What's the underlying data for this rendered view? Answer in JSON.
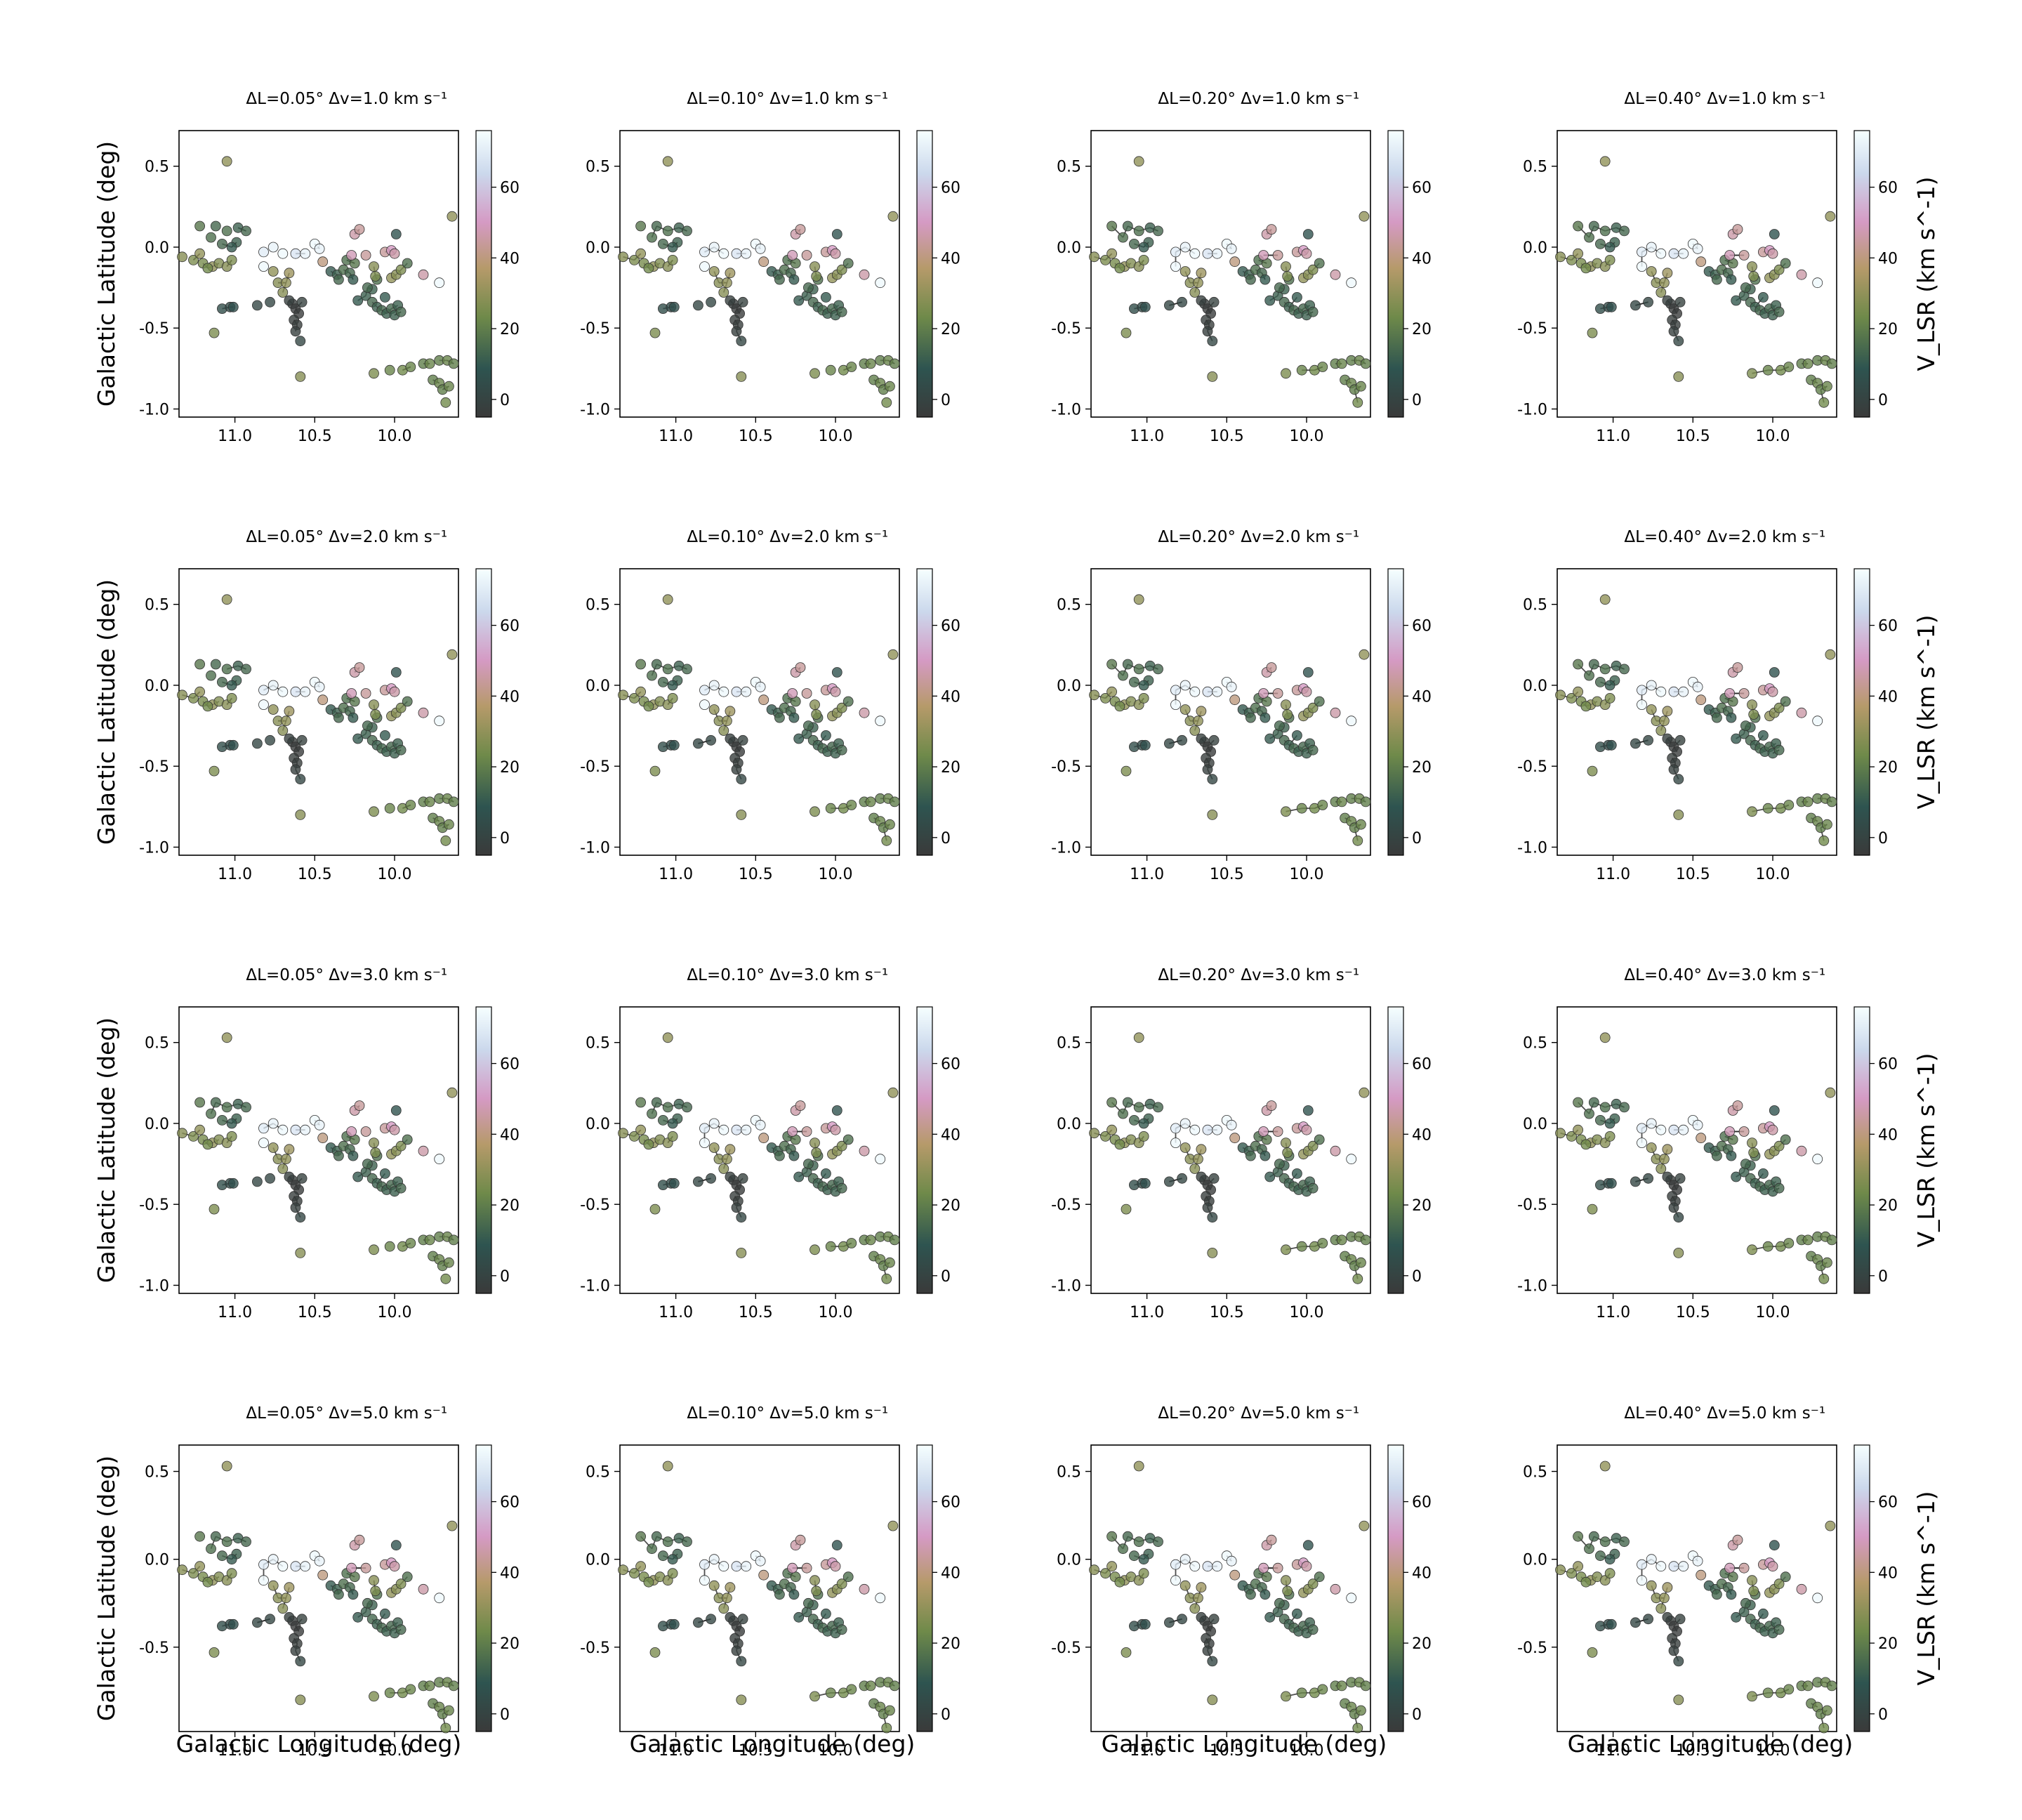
{
  "figure": {
    "xlabel": "Galactic Longitude (deg)",
    "ylabel": "Galactic Latitude (deg)",
    "colorbar_label": "V_LSR (km s^-1)"
  },
  "rows": [
    {
      "dv": "1.0"
    },
    {
      "dv": "2.0"
    },
    {
      "dv": "3.0"
    },
    {
      "dv": "5.0"
    }
  ],
  "cols": [
    {
      "dL": "0.05"
    },
    {
      "dL": "0.10"
    },
    {
      "dL": "0.20"
    },
    {
      "dL": "0.40"
    }
  ],
  "chart_data": {
    "type": "scatter",
    "title_template": "ΔL={dL}° Δv={dv} km s⁻¹",
    "xlim": [
      11.35,
      9.6
    ],
    "xticks": [
      "11.0",
      "10.5",
      "10.0"
    ],
    "xtick_values": [
      11.0,
      10.5,
      10.0
    ],
    "ylim_rows_1to3": [
      -1.05,
      0.72
    ],
    "yticks_rows_1to3": [
      "0.5",
      "0.0",
      "-0.5",
      "-1.0"
    ],
    "ylim_row_4": [
      -0.98,
      0.65
    ],
    "yticks_row_4": [
      "0.5",
      "0.0",
      "-0.5"
    ],
    "colorbar": {
      "range": [
        -5,
        76
      ],
      "ticks": [
        "0",
        "20",
        "40",
        "60"
      ],
      "tick_values": [
        0,
        20,
        40,
        60
      ],
      "colors": [
        "#3a3a3a",
        "#2e5450",
        "#6f8a4a",
        "#b69a6a",
        "#d59ac4",
        "#cbd8ec",
        "#f6ffff"
      ]
    },
    "points": [
      [
        11.22,
        0.13,
        18
      ],
      [
        11.12,
        0.13,
        14
      ],
      [
        11.05,
        0.1,
        16
      ],
      [
        10.98,
        0.12,
        12
      ],
      [
        10.93,
        0.1,
        14
      ],
      [
        11.15,
        0.06,
        16
      ],
      [
        11.08,
        0.02,
        14
      ],
      [
        10.99,
        0.03,
        12
      ],
      [
        11.02,
        0.0,
        10
      ],
      [
        11.33,
        -0.06,
        28
      ],
      [
        11.26,
        -0.08,
        26
      ],
      [
        11.2,
        -0.1,
        25
      ],
      [
        11.14,
        -0.12,
        30
      ],
      [
        11.1,
        -0.1,
        27
      ],
      [
        11.05,
        -0.12,
        28
      ],
      [
        11.02,
        -0.08,
        26
      ],
      [
        11.22,
        -0.04,
        30
      ],
      [
        11.17,
        -0.13,
        24
      ],
      [
        10.82,
        -0.03,
        70
      ],
      [
        10.76,
        0.0,
        72
      ],
      [
        10.7,
        -0.04,
        74
      ],
      [
        10.62,
        -0.04,
        68
      ],
      [
        10.56,
        -0.04,
        72
      ],
      [
        10.5,
        0.02,
        74
      ],
      [
        10.47,
        -0.01,
        72
      ],
      [
        10.82,
        -0.12,
        74
      ],
      [
        10.76,
        -0.15,
        30
      ],
      [
        10.73,
        -0.22,
        28
      ],
      [
        10.68,
        -0.22,
        30
      ],
      [
        10.7,
        -0.28,
        28
      ],
      [
        10.66,
        -0.16,
        32
      ],
      [
        10.86,
        -0.36,
        2
      ],
      [
        10.78,
        -0.34,
        2
      ],
      [
        10.64,
        -0.35,
        -3
      ],
      [
        10.62,
        -0.38,
        -4
      ],
      [
        10.6,
        -0.41,
        -4
      ],
      [
        10.63,
        -0.45,
        -3
      ],
      [
        10.61,
        -0.48,
        -3
      ],
      [
        10.62,
        -0.52,
        -2
      ],
      [
        10.59,
        -0.58,
        2
      ],
      [
        10.66,
        -0.33,
        -2
      ],
      [
        10.58,
        -0.34,
        -1
      ],
      [
        10.59,
        -0.8,
        28
      ],
      [
        11.08,
        -0.38,
        5
      ],
      [
        11.03,
        -0.37,
        4
      ],
      [
        11.01,
        -0.37,
        6
      ],
      [
        11.13,
        -0.53,
        26
      ],
      [
        10.45,
        -0.09,
        40
      ],
      [
        10.4,
        -0.15,
        10
      ],
      [
        10.36,
        -0.17,
        12
      ],
      [
        10.35,
        -0.2,
        14
      ],
      [
        10.32,
        -0.14,
        16
      ],
      [
        10.28,
        -0.16,
        14
      ],
      [
        10.26,
        -0.2,
        10
      ],
      [
        10.3,
        -0.08,
        16
      ],
      [
        10.25,
        -0.1,
        18
      ],
      [
        10.25,
        0.08,
        46
      ],
      [
        10.22,
        0.11,
        44
      ],
      [
        10.18,
        -0.05,
        44
      ],
      [
        10.27,
        -0.05,
        48
      ],
      [
        10.23,
        -0.33,
        10
      ],
      [
        10.18,
        -0.3,
        12
      ],
      [
        10.14,
        -0.34,
        14
      ],
      [
        10.11,
        -0.37,
        12
      ],
      [
        10.08,
        -0.39,
        14
      ],
      [
        10.05,
        -0.41,
        12
      ],
      [
        10.02,
        -0.38,
        14
      ],
      [
        9.98,
        -0.36,
        12
      ],
      [
        10.0,
        -0.42,
        12
      ],
      [
        10.14,
        -0.26,
        12
      ],
      [
        10.06,
        -0.31,
        10
      ],
      [
        10.11,
        -0.2,
        16
      ],
      [
        9.96,
        -0.4,
        14
      ],
      [
        10.17,
        -0.25,
        14
      ],
      [
        10.13,
        -0.12,
        28
      ],
      [
        10.12,
        -0.18,
        26
      ],
      [
        10.02,
        -0.19,
        30
      ],
      [
        9.99,
        -0.17,
        28
      ],
      [
        9.96,
        -0.14,
        26
      ],
      [
        10.06,
        -0.03,
        44
      ],
      [
        10.02,
        -0.02,
        50
      ],
      [
        10.0,
        -0.04,
        46
      ],
      [
        9.99,
        0.08,
        8
      ],
      [
        9.92,
        -0.1,
        16
      ],
      [
        9.82,
        -0.17,
        46
      ],
      [
        9.72,
        -0.22,
        74
      ],
      [
        9.64,
        0.19,
        30
      ],
      [
        10.13,
        -0.78,
        26
      ],
      [
        10.03,
        -0.76,
        22
      ],
      [
        9.95,
        -0.76,
        24
      ],
      [
        9.9,
        -0.74,
        22
      ],
      [
        9.82,
        -0.72,
        20
      ],
      [
        9.78,
        -0.72,
        22
      ],
      [
        9.72,
        -0.7,
        20
      ],
      [
        9.67,
        -0.7,
        22
      ],
      [
        9.63,
        -0.72,
        20
      ],
      [
        9.76,
        -0.82,
        20
      ],
      [
        9.72,
        -0.84,
        22
      ],
      [
        9.7,
        -0.88,
        20
      ],
      [
        9.66,
        -0.86,
        22
      ],
      [
        9.68,
        -0.96,
        24
      ],
      [
        11.05,
        0.53,
        30
      ]
    ]
  }
}
